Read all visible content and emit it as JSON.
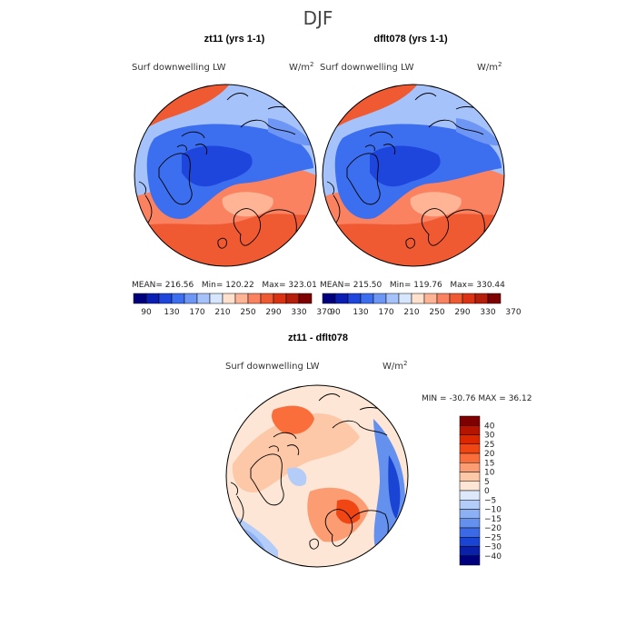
{
  "title": "DJF",
  "panels": [
    {
      "title": "zt11 (yrs 1-1)",
      "variable": "Surf downwelling LW",
      "units_base": "W/m",
      "units_exp": "2",
      "mean_label": "MEAN=",
      "mean": "216.56",
      "min_label": "Min=",
      "min": "120.22",
      "max_label": "Max=",
      "max": "323.01",
      "colorbar_ticks": [
        "90",
        "130",
        "170",
        "210",
        "250",
        "290",
        "330",
        "370"
      ]
    },
    {
      "title": "dflt078 (yrs 1-1)",
      "variable": "Surf downwelling LW",
      "units_base": "W/m",
      "units_exp": "2",
      "mean_label": "MEAN=",
      "mean": "215.50",
      "min_label": "Min=",
      "min": "119.76",
      "max_label": "Max=",
      "max": "330.44",
      "colorbar_ticks": [
        "90",
        "130",
        "170",
        "210",
        "250",
        "290",
        "330",
        "370"
      ]
    }
  ],
  "difference": {
    "title": "zt11 - dflt078",
    "variable": "Surf downwelling LW",
    "units_base": "W/m",
    "units_exp": "2",
    "min_label": "MIN =",
    "min": "-30.76",
    "max_label": "MAX =",
    "max": "36.12",
    "colorbar_ticks": [
      "40",
      "30",
      "25",
      "20",
      "15",
      "10",
      "5",
      "0",
      "−5",
      "−10",
      "−15",
      "−20",
      "−25",
      "−30",
      "−40"
    ]
  },
  "colors": {
    "abs_scale": [
      "#00007f",
      "#0a1eb4",
      "#1e46dc",
      "#3c6ef0",
      "#6e96f5",
      "#a5c3fa",
      "#d7e6ff",
      "#ffe1cd",
      "#ffb496",
      "#fa8260",
      "#f05a32",
      "#dc3214",
      "#b41e0a",
      "#7f0000"
    ],
    "diff_scale": [
      "#7f0000",
      "#b41400",
      "#dc2800",
      "#f04614",
      "#fa6e3c",
      "#fc9c72",
      "#fdc8a8",
      "#fde6d5",
      "#dde9fb",
      "#b4cdf8",
      "#8cb0f3",
      "#6490ee",
      "#3c6ae6",
      "#1a44d4",
      "#0a20a8",
      "#00007f"
    ]
  }
}
